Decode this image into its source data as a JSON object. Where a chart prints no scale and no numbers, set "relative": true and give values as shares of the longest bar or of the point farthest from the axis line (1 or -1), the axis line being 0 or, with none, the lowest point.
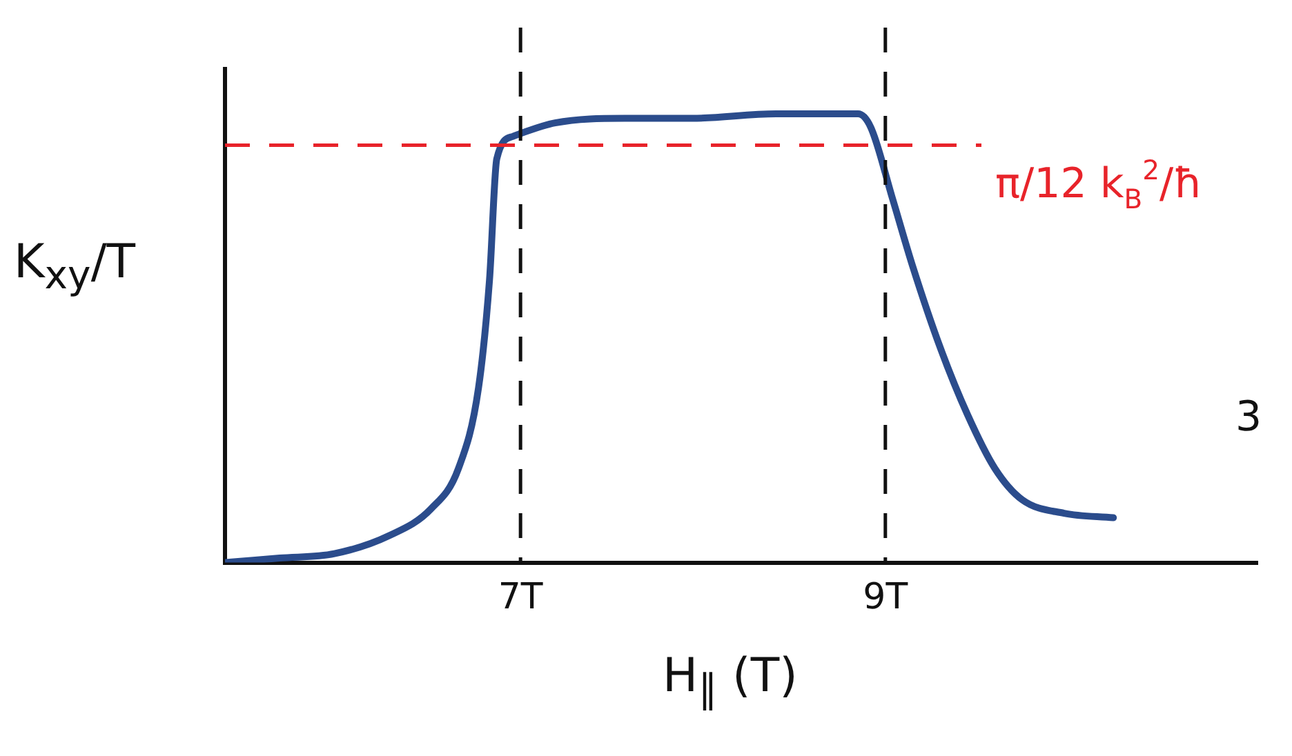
{
  "chart_data": {
    "type": "line",
    "xlabel": "H$_{∥}$ (T)",
    "ylabel": "K$_{xy}$/T",
    "relative": true,
    "xlim": [
      5.38,
      11.04
    ],
    "xticks": [
      {
        "value": 7,
        "label": "7T"
      },
      {
        "value": 9,
        "label": "9T"
      }
    ],
    "series": [
      {
        "color": "#2b4c8c",
        "x": [
          5.38,
          5.68,
          5.98,
          6.28,
          6.51,
          6.66,
          6.77,
          6.83,
          6.87,
          6.96,
          7.19,
          7.57,
          7.94,
          8.4,
          8.85,
          8.92,
          9.04,
          9.15,
          9.3,
          9.45,
          9.6,
          9.75,
          9.98,
          10.25
        ],
        "values": [
          0,
          0.01,
          0.02,
          0.06,
          0.12,
          0.21,
          0.39,
          0.63,
          0.9,
          0.95,
          0.98,
          0.99,
          0.99,
          1,
          1,
          0.97,
          0.81,
          0.66,
          0.48,
          0.33,
          0.21,
          0.14,
          0.11,
          0.1
        ]
      }
    ],
    "ref_lines": [
      {
        "axis": "y",
        "value": 0.93,
        "label": "π/12 k$_{B}$$^{2}$/ħ",
        "color": "#e8232a",
        "line_style": "dashed"
      },
      {
        "axis": "x",
        "value": 7,
        "color": "#111111",
        "line_style": "dashed"
      },
      {
        "axis": "x",
        "value": 9,
        "color": "#111111",
        "line_style": "dashed"
      }
    ],
    "annotations": [
      "3"
    ],
    "grid": false,
    "legend": false,
    "marker": "none",
    "line_style": "solid"
  }
}
